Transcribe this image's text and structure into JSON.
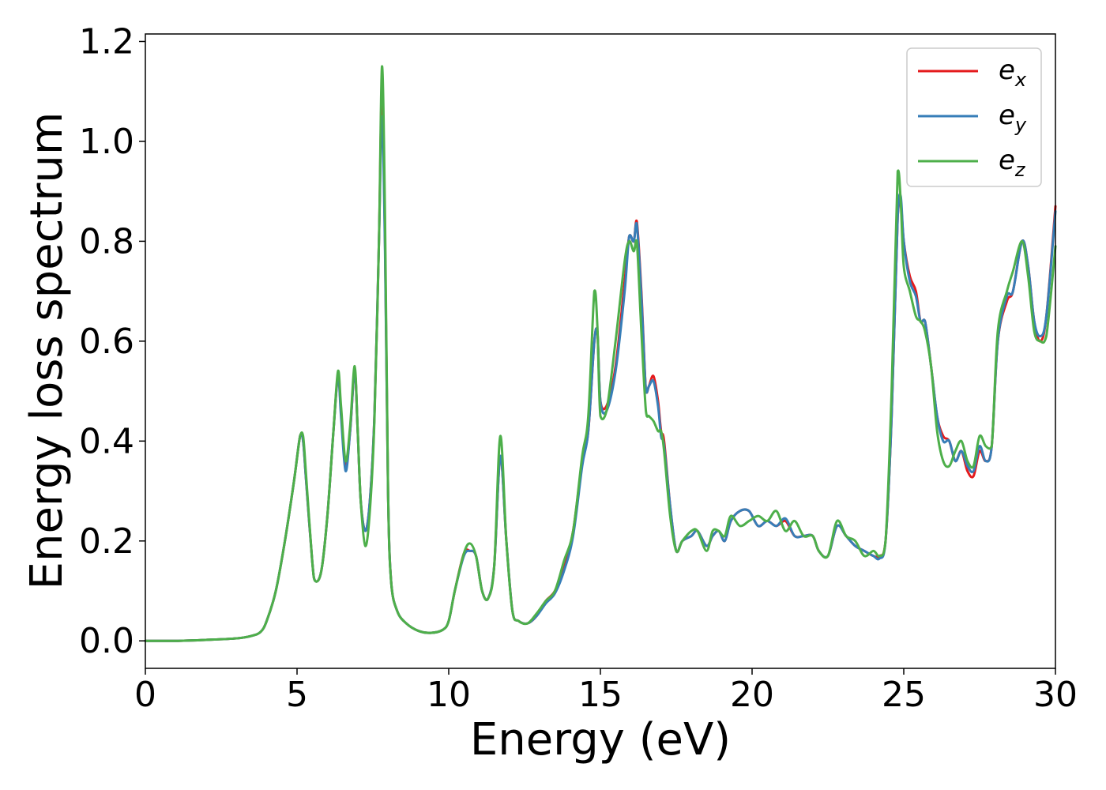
{
  "chart_data": {
    "type": "line",
    "title": "",
    "xlabel": "Energy (eV)",
    "ylabel": "Energy loss spectrum",
    "xlim": [
      0,
      30
    ],
    "ylim": [
      -0.055,
      1.215
    ],
    "xticks": [
      0,
      5,
      10,
      15,
      20,
      25,
      30
    ],
    "xtick_labels": [
      "0",
      "5",
      "10",
      "15",
      "20",
      "25",
      "30"
    ],
    "yticks": [
      0.0,
      0.2,
      0.4,
      0.6,
      0.8,
      1.0,
      1.2
    ],
    "ytick_labels": [
      "0.0",
      "0.2",
      "0.4",
      "0.6",
      "0.8",
      "1.0",
      "1.2"
    ],
    "grid": false,
    "legend_position": "top-right",
    "series": [
      {
        "name": "e_x",
        "label_base": "e",
        "label_sub": "x",
        "color": "#e41a1c",
        "x": [
          0,
          1,
          2,
          3,
          3.5,
          3.8,
          4.0,
          4.3,
          4.6,
          4.9,
          5.1,
          5.2,
          5.3,
          5.5,
          5.6,
          5.8,
          6.0,
          6.2,
          6.35,
          6.45,
          6.6,
          6.75,
          6.9,
          7.0,
          7.1,
          7.25,
          7.4,
          7.55,
          7.7,
          7.8,
          7.9,
          8.0,
          8.1,
          8.3,
          8.6,
          9.0,
          9.4,
          9.8,
          10.0,
          10.2,
          10.5,
          10.7,
          10.9,
          11.1,
          11.3,
          11.5,
          11.7,
          11.9,
          12.1,
          12.3,
          12.6,
          12.9,
          13.2,
          13.5,
          13.8,
          14.1,
          14.4,
          14.6,
          14.8,
          14.9,
          15.0,
          15.2,
          15.5,
          15.8,
          15.95,
          16.1,
          16.2,
          16.35,
          16.5,
          16.6,
          16.75,
          16.9,
          17.0,
          17.1,
          17.3,
          17.5,
          17.7,
          18.0,
          18.2,
          18.5,
          18.7,
          18.9,
          19.1,
          19.3,
          19.6,
          19.9,
          20.2,
          20.5,
          20.8,
          21.1,
          21.4,
          21.7,
          22.0,
          22.2,
          22.5,
          22.8,
          23.1,
          23.4,
          23.7,
          24.0,
          24.2,
          24.4,
          24.6,
          24.8,
          24.9,
          25.0,
          25.2,
          25.4,
          25.55,
          25.7,
          25.9,
          26.1,
          26.3,
          26.5,
          26.7,
          26.9,
          27.1,
          27.3,
          27.5,
          27.7,
          27.9,
          28.1,
          28.4,
          28.6,
          28.9,
          29.1,
          29.3,
          29.5,
          29.7,
          30.0
        ],
        "y": [
          0.0,
          0.0,
          0.002,
          0.005,
          0.01,
          0.018,
          0.04,
          0.1,
          0.2,
          0.32,
          0.41,
          0.4,
          0.32,
          0.16,
          0.12,
          0.14,
          0.25,
          0.42,
          0.53,
          0.46,
          0.35,
          0.42,
          0.54,
          0.42,
          0.28,
          0.22,
          0.28,
          0.45,
          0.8,
          1.1,
          0.8,
          0.3,
          0.12,
          0.06,
          0.035,
          0.02,
          0.016,
          0.022,
          0.04,
          0.1,
          0.175,
          0.18,
          0.17,
          0.1,
          0.085,
          0.15,
          0.37,
          0.2,
          0.06,
          0.04,
          0.035,
          0.05,
          0.08,
          0.1,
          0.15,
          0.22,
          0.36,
          0.42,
          0.6,
          0.62,
          0.48,
          0.47,
          0.55,
          0.72,
          0.81,
          0.8,
          0.84,
          0.7,
          0.5,
          0.51,
          0.53,
          0.48,
          0.42,
          0.4,
          0.27,
          0.18,
          0.2,
          0.21,
          0.22,
          0.19,
          0.21,
          0.22,
          0.2,
          0.24,
          0.26,
          0.26,
          0.23,
          0.24,
          0.23,
          0.24,
          0.21,
          0.21,
          0.21,
          0.18,
          0.17,
          0.23,
          0.21,
          0.19,
          0.18,
          0.17,
          0.17,
          0.2,
          0.45,
          0.85,
          0.88,
          0.8,
          0.73,
          0.7,
          0.64,
          0.64,
          0.55,
          0.45,
          0.41,
          0.4,
          0.36,
          0.38,
          0.34,
          0.33,
          0.38,
          0.36,
          0.39,
          0.6,
          0.68,
          0.7,
          0.8,
          0.75,
          0.64,
          0.6,
          0.65,
          0.87
        ]
      },
      {
        "name": "e_y",
        "label_base": "e",
        "label_sub": "y",
        "color": "#377eb8",
        "x": [
          0,
          1,
          2,
          3,
          3.5,
          3.8,
          4.0,
          4.3,
          4.6,
          4.9,
          5.1,
          5.2,
          5.3,
          5.5,
          5.6,
          5.8,
          6.0,
          6.2,
          6.35,
          6.45,
          6.6,
          6.75,
          6.9,
          7.0,
          7.1,
          7.25,
          7.4,
          7.55,
          7.7,
          7.8,
          7.9,
          8.0,
          8.1,
          8.3,
          8.6,
          9.0,
          9.4,
          9.8,
          10.0,
          10.2,
          10.5,
          10.7,
          10.9,
          11.1,
          11.3,
          11.5,
          11.7,
          11.9,
          12.1,
          12.3,
          12.6,
          12.9,
          13.2,
          13.5,
          13.8,
          14.1,
          14.4,
          14.6,
          14.8,
          14.9,
          15.0,
          15.2,
          15.5,
          15.8,
          15.95,
          16.1,
          16.2,
          16.35,
          16.5,
          16.6,
          16.75,
          16.9,
          17.0,
          17.1,
          17.3,
          17.5,
          17.7,
          18.0,
          18.2,
          18.5,
          18.7,
          18.9,
          19.1,
          19.3,
          19.6,
          19.9,
          20.2,
          20.5,
          20.8,
          21.1,
          21.4,
          21.7,
          22.0,
          22.2,
          22.5,
          22.8,
          23.1,
          23.4,
          23.7,
          24.0,
          24.2,
          24.4,
          24.6,
          24.8,
          24.9,
          25.0,
          25.2,
          25.4,
          25.55,
          25.7,
          25.9,
          26.1,
          26.3,
          26.5,
          26.7,
          26.9,
          27.1,
          27.3,
          27.5,
          27.7,
          27.9,
          28.1,
          28.4,
          28.6,
          28.9,
          29.1,
          29.3,
          29.5,
          29.7,
          30.0
        ],
        "y": [
          0.0,
          0.0,
          0.002,
          0.005,
          0.01,
          0.018,
          0.04,
          0.1,
          0.2,
          0.32,
          0.41,
          0.4,
          0.32,
          0.16,
          0.12,
          0.14,
          0.25,
          0.42,
          0.53,
          0.45,
          0.34,
          0.42,
          0.54,
          0.42,
          0.28,
          0.22,
          0.28,
          0.45,
          0.8,
          1.05,
          0.78,
          0.3,
          0.12,
          0.06,
          0.035,
          0.02,
          0.016,
          0.022,
          0.04,
          0.1,
          0.17,
          0.18,
          0.17,
          0.1,
          0.085,
          0.15,
          0.37,
          0.2,
          0.06,
          0.04,
          0.035,
          0.05,
          0.075,
          0.095,
          0.14,
          0.21,
          0.35,
          0.42,
          0.6,
          0.62,
          0.48,
          0.46,
          0.54,
          0.7,
          0.81,
          0.8,
          0.835,
          0.69,
          0.5,
          0.51,
          0.52,
          0.47,
          0.41,
          0.39,
          0.27,
          0.18,
          0.2,
          0.21,
          0.22,
          0.19,
          0.21,
          0.22,
          0.2,
          0.24,
          0.26,
          0.26,
          0.23,
          0.24,
          0.23,
          0.245,
          0.21,
          0.21,
          0.21,
          0.18,
          0.17,
          0.23,
          0.21,
          0.19,
          0.18,
          0.17,
          0.165,
          0.2,
          0.45,
          0.85,
          0.89,
          0.8,
          0.72,
          0.69,
          0.64,
          0.64,
          0.55,
          0.45,
          0.4,
          0.4,
          0.36,
          0.38,
          0.35,
          0.34,
          0.39,
          0.36,
          0.39,
          0.6,
          0.69,
          0.7,
          0.8,
          0.75,
          0.64,
          0.61,
          0.65,
          0.86
        ]
      },
      {
        "name": "e_z",
        "label_base": "e",
        "label_sub": "z",
        "color": "#4daf4a",
        "x": [
          0,
          1,
          2,
          3,
          3.5,
          3.8,
          4.0,
          4.3,
          4.6,
          4.9,
          5.1,
          5.2,
          5.3,
          5.5,
          5.6,
          5.8,
          6.0,
          6.2,
          6.35,
          6.45,
          6.6,
          6.75,
          6.9,
          7.0,
          7.1,
          7.25,
          7.4,
          7.55,
          7.7,
          7.8,
          7.9,
          8.0,
          8.1,
          8.3,
          8.6,
          9.0,
          9.4,
          9.8,
          10.0,
          10.2,
          10.5,
          10.7,
          10.9,
          11.1,
          11.3,
          11.5,
          11.7,
          11.9,
          12.1,
          12.3,
          12.6,
          12.9,
          13.2,
          13.5,
          13.8,
          14.1,
          14.4,
          14.6,
          14.8,
          14.9,
          15.0,
          15.2,
          15.5,
          15.8,
          15.95,
          16.1,
          16.2,
          16.35,
          16.5,
          16.6,
          16.75,
          16.9,
          17.0,
          17.1,
          17.3,
          17.5,
          17.7,
          18.0,
          18.2,
          18.5,
          18.7,
          18.9,
          19.1,
          19.3,
          19.6,
          19.9,
          20.2,
          20.5,
          20.8,
          21.1,
          21.4,
          21.7,
          22.0,
          22.2,
          22.5,
          22.8,
          23.1,
          23.4,
          23.7,
          24.0,
          24.2,
          24.4,
          24.6,
          24.8,
          24.9,
          25.0,
          25.2,
          25.4,
          25.55,
          25.7,
          25.9,
          26.1,
          26.3,
          26.5,
          26.7,
          26.9,
          27.1,
          27.3,
          27.5,
          27.7,
          27.9,
          28.1,
          28.4,
          28.6,
          28.9,
          29.1,
          29.3,
          29.5,
          29.7,
          30.0
        ],
        "y": [
          0.0,
          0.0,
          0.002,
          0.005,
          0.01,
          0.018,
          0.04,
          0.1,
          0.2,
          0.32,
          0.41,
          0.41,
          0.33,
          0.16,
          0.12,
          0.14,
          0.25,
          0.42,
          0.54,
          0.47,
          0.36,
          0.43,
          0.55,
          0.42,
          0.28,
          0.19,
          0.26,
          0.44,
          0.8,
          1.15,
          0.85,
          0.3,
          0.12,
          0.06,
          0.035,
          0.02,
          0.016,
          0.022,
          0.04,
          0.1,
          0.175,
          0.195,
          0.17,
          0.1,
          0.085,
          0.15,
          0.41,
          0.2,
          0.06,
          0.04,
          0.035,
          0.055,
          0.08,
          0.1,
          0.16,
          0.22,
          0.37,
          0.45,
          0.7,
          0.63,
          0.45,
          0.46,
          0.6,
          0.76,
          0.8,
          0.78,
          0.8,
          0.62,
          0.46,
          0.45,
          0.44,
          0.42,
          0.42,
          0.38,
          0.25,
          0.18,
          0.2,
          0.22,
          0.22,
          0.18,
          0.22,
          0.22,
          0.21,
          0.25,
          0.23,
          0.24,
          0.25,
          0.24,
          0.26,
          0.22,
          0.24,
          0.21,
          0.21,
          0.18,
          0.17,
          0.24,
          0.21,
          0.2,
          0.17,
          0.18,
          0.17,
          0.2,
          0.5,
          0.94,
          0.88,
          0.75,
          0.7,
          0.65,
          0.64,
          0.62,
          0.55,
          0.42,
          0.36,
          0.35,
          0.38,
          0.4,
          0.36,
          0.35,
          0.41,
          0.39,
          0.39,
          0.62,
          0.7,
          0.74,
          0.8,
          0.73,
          0.62,
          0.6,
          0.61,
          0.79
        ]
      }
    ]
  }
}
